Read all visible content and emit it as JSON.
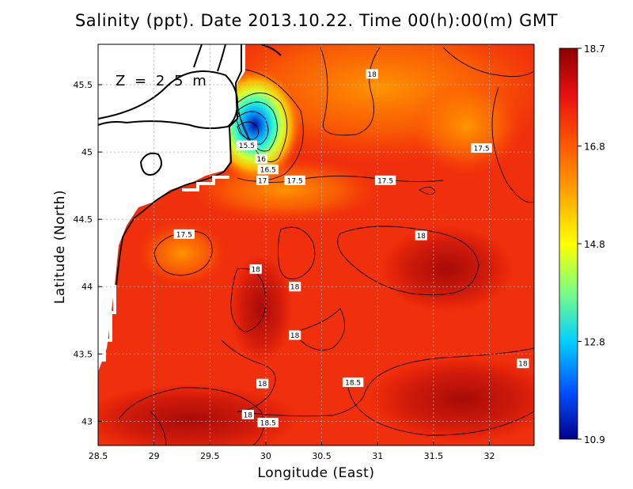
{
  "title": "Salinity (ppt). Date 2013.10.22. Time 00(h):00(m) GMT",
  "depth_label": "Z = 2.5 m",
  "axes": {
    "xlabel": "Longitude (East)",
    "ylabel": "Latitude (North)",
    "xlim": [
      28.5,
      32.4
    ],
    "ylim": [
      42.82,
      45.8
    ],
    "xticks": [
      "28.5",
      "29",
      "29.5",
      "30",
      "30.5",
      "31",
      "31.5",
      "32"
    ],
    "yticks": [
      "43",
      "43.5",
      "44",
      "44.5",
      "45",
      "45.5"
    ]
  },
  "colorbar": {
    "min": 10.9,
    "max": 18.7,
    "ticks": [
      "18.7",
      "16.8",
      "14.8",
      "12.8",
      "10.9"
    ],
    "colors": [
      "#8b0000",
      "#e81010",
      "#ff5a00",
      "#ffa500",
      "#ffff00",
      "#7fff7f",
      "#00d0ff",
      "#0050ff",
      "#00008b"
    ]
  },
  "contour_labels": [
    {
      "text": "18",
      "lon": 30.95,
      "lat": 45.58
    },
    {
      "text": "17.5",
      "lon": 31.93,
      "lat": 45.03
    },
    {
      "text": "15.5",
      "lon": 29.83,
      "lat": 45.05
    },
    {
      "text": "16",
      "lon": 29.96,
      "lat": 44.95
    },
    {
      "text": "16.5",
      "lon": 30.02,
      "lat": 44.87
    },
    {
      "text": "17",
      "lon": 29.97,
      "lat": 44.79
    },
    {
      "text": "17.5",
      "lon": 30.26,
      "lat": 44.79
    },
    {
      "text": "17.5",
      "lon": 31.07,
      "lat": 44.79
    },
    {
      "text": "17.5",
      "lon": 29.27,
      "lat": 44.39
    },
    {
      "text": "18",
      "lon": 31.39,
      "lat": 44.38
    },
    {
      "text": "18",
      "lon": 29.91,
      "lat": 44.13
    },
    {
      "text": "18",
      "lon": 30.26,
      "lat": 44.0
    },
    {
      "text": "18",
      "lon": 30.26,
      "lat": 43.64
    },
    {
      "text": "18",
      "lon": 32.3,
      "lat": 43.43
    },
    {
      "text": "18.5",
      "lon": 30.78,
      "lat": 43.29
    },
    {
      "text": "18",
      "lon": 29.97,
      "lat": 43.28
    },
    {
      "text": "18",
      "lon": 29.84,
      "lat": 43.05
    },
    {
      "text": "18.5",
      "lon": 30.02,
      "lat": 42.99
    }
  ],
  "fields": {
    "background_salinity": 17.9,
    "river_plume": {
      "lon": 29.75,
      "lat": 45.2,
      "min_salinity": 10.9
    },
    "high_salinity_areas": [
      {
        "lon": 31.5,
        "lat": 44.1,
        "value": 18.3
      },
      {
        "lon": 30.8,
        "lat": 43.05,
        "value": 18.6
      },
      {
        "lon": 32.0,
        "lat": 43.1,
        "value": 18.6
      },
      {
        "lon": 29.4,
        "lat": 42.95,
        "value": 18.5
      }
    ],
    "low_salinity_areas": [
      {
        "lon": 29.25,
        "lat": 44.3,
        "value": 17.4
      },
      {
        "lon": 31.6,
        "lat": 45.2,
        "value": 17.2
      },
      {
        "lon": 30.95,
        "lat": 45.35,
        "value": 17.3
      }
    ]
  }
}
